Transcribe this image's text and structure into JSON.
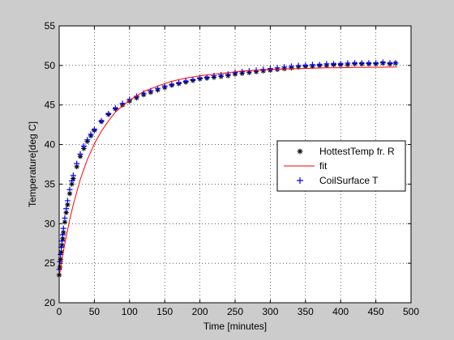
{
  "chart_data": {
    "type": "scatter",
    "title": "",
    "xlabel": "Time [minutes]",
    "ylabel": "Temperature[deg C]",
    "xlim": [
      0,
      500
    ],
    "ylim": [
      20,
      55
    ],
    "xticks": [
      0,
      50,
      100,
      150,
      200,
      250,
      300,
      350,
      400,
      450,
      500
    ],
    "yticks": [
      20,
      25,
      30,
      35,
      40,
      45,
      50,
      55
    ],
    "grid": true,
    "grid_style": "dotted",
    "legend_position": "right-middle",
    "series": [
      {
        "name": "HottestTemp fr. R",
        "marker": "asterisk",
        "color": "#000000",
        "x": [
          0,
          1,
          2,
          3,
          4,
          5,
          6,
          8,
          10,
          12,
          15,
          18,
          20,
          25,
          30,
          35,
          40,
          45,
          50,
          60,
          70,
          80,
          90,
          100,
          110,
          120,
          130,
          140,
          150,
          160,
          170,
          180,
          190,
          200,
          210,
          220,
          230,
          240,
          250,
          260,
          270,
          280,
          290,
          300,
          310,
          320,
          330,
          340,
          350,
          360,
          370,
          380,
          390,
          400,
          410,
          420,
          430,
          440,
          450,
          460,
          470,
          478
        ],
        "y": [
          23.5,
          24.5,
          25.5,
          26.4,
          27.3,
          28.1,
          28.9,
          30.2,
          31.4,
          32.4,
          33.8,
          35.0,
          35.7,
          37.2,
          38.5,
          39.5,
          40.4,
          41.1,
          41.8,
          42.9,
          43.8,
          44.5,
          45.0,
          45.5,
          45.9,
          46.3,
          46.6,
          46.9,
          47.2,
          47.5,
          47.7,
          47.9,
          48.1,
          48.3,
          48.4,
          48.5,
          48.6,
          48.7,
          48.9,
          49.0,
          49.1,
          49.2,
          49.3,
          49.4,
          49.5,
          49.6,
          49.7,
          49.8,
          49.9,
          49.9,
          50.0,
          50.0,
          50.1,
          50.1,
          50.1,
          50.2,
          50.2,
          50.2,
          50.2,
          50.3,
          50.2,
          50.3
        ]
      },
      {
        "name": "fit",
        "marker": "line",
        "color": "#ff0000",
        "x": [
          0,
          5,
          10,
          15,
          20,
          30,
          40,
          50,
          60,
          70,
          80,
          90,
          100,
          120,
          140,
          160,
          180,
          200,
          220,
          240,
          260,
          280,
          300,
          320,
          340,
          360,
          380,
          400,
          420,
          440,
          460,
          480
        ],
        "y": [
          23.3,
          26.0,
          28.4,
          30.5,
          32.4,
          35.6,
          38.1,
          40.1,
          41.7,
          43.0,
          44.1,
          44.9,
          45.6,
          46.7,
          47.4,
          48.0,
          48.4,
          48.7,
          48.9,
          49.1,
          49.3,
          49.4,
          49.5,
          49.55,
          49.6,
          49.65,
          49.7,
          49.72,
          49.75,
          49.77,
          49.78,
          49.8
        ]
      },
      {
        "name": "CoilSurface T",
        "marker": "plus",
        "color": "#0000ff",
        "x": [
          0,
          1,
          2,
          3,
          4,
          5,
          6,
          8,
          10,
          12,
          15,
          18,
          20,
          25,
          30,
          35,
          40,
          45,
          50,
          60,
          70,
          80,
          90,
          100,
          110,
          120,
          130,
          140,
          150,
          160,
          170,
          180,
          190,
          200,
          210,
          220,
          230,
          240,
          250,
          260,
          270,
          280,
          290,
          300,
          310,
          320,
          330,
          340,
          350,
          360,
          370,
          380,
          390,
          400,
          410,
          420,
          430,
          440,
          450,
          460,
          470,
          478
        ],
        "y": [
          24.2,
          25.2,
          26.1,
          27.0,
          27.8,
          28.6,
          29.4,
          30.7,
          31.9,
          32.9,
          34.3,
          35.4,
          36.1,
          37.6,
          38.8,
          39.8,
          40.6,
          41.3,
          41.9,
          43.0,
          43.9,
          44.6,
          45.2,
          45.7,
          46.1,
          46.5,
          46.8,
          47.1,
          47.4,
          47.6,
          47.8,
          48.0,
          48.2,
          48.4,
          48.5,
          48.7,
          48.8,
          48.9,
          49.1,
          49.2,
          49.3,
          49.4,
          49.5,
          49.6,
          49.7,
          49.8,
          49.9,
          50.0,
          50.0,
          50.1,
          50.1,
          50.2,
          50.2,
          50.2,
          50.3,
          50.3,
          50.3,
          50.3,
          50.3,
          50.4,
          50.3,
          50.3
        ]
      }
    ]
  }
}
